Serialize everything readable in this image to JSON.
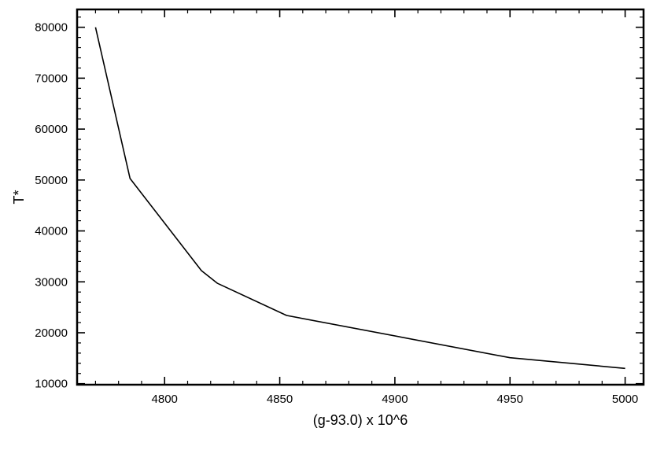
{
  "chart_data": {
    "type": "line",
    "title": "",
    "xlabel": "(g-93.0) x 10^6",
    "ylabel": "T*",
    "xlim": [
      4762,
      5008
    ],
    "ylim": [
      9800,
      83500
    ],
    "x_ticks": [
      4800,
      4850,
      4900,
      4950,
      5000
    ],
    "x_tick_labels": [
      "4800",
      "4850",
      "4900",
      "4950",
      "5000"
    ],
    "x_minor_step": 10,
    "y_ticks": [
      10000,
      20000,
      30000,
      40000,
      50000,
      60000,
      70000,
      80000
    ],
    "y_tick_labels": [
      "10000",
      "20000",
      "30000",
      "40000",
      "50000",
      "60000",
      "70000",
      "80000"
    ],
    "y_minor_step": 2000,
    "grid": false,
    "line_color": "#000000",
    "series": [
      {
        "x": [
          4770,
          4785,
          4816,
          4823,
          4853,
          4950,
          5000
        ],
        "y": [
          80000,
          50300,
          32200,
          29700,
          23400,
          15100,
          13000
        ]
      }
    ]
  }
}
